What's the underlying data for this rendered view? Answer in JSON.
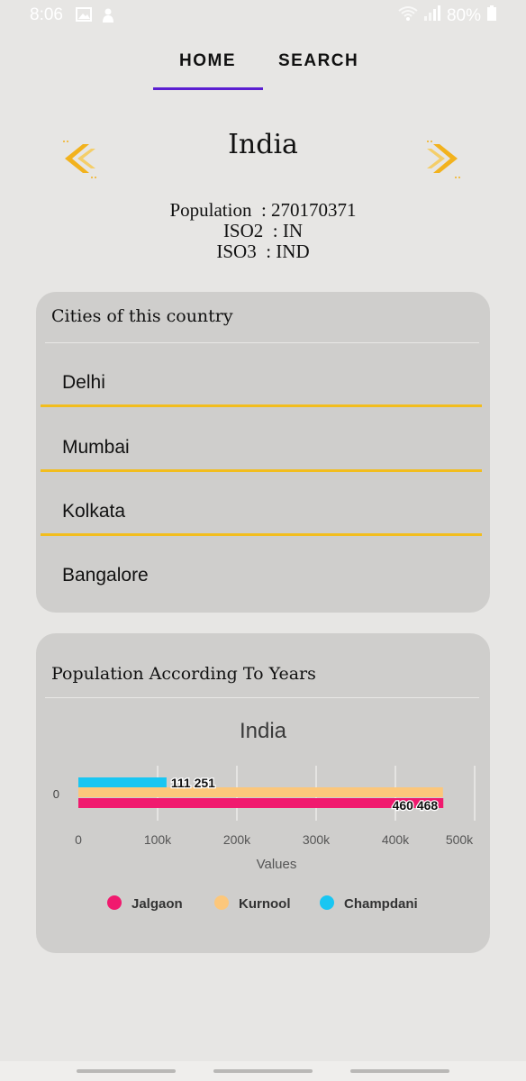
{
  "status_bar": {
    "time": "8:06",
    "battery": "80%",
    "left_icons": [
      "image-icon",
      "notification-icon"
    ],
    "right_icons": [
      "wifi-icon",
      "signal-icon",
      "battery-icon"
    ]
  },
  "tabs": [
    {
      "label": "HOME",
      "selected": true
    },
    {
      "label": "SEARCH",
      "selected": false
    }
  ],
  "colors": {
    "tab_indicator": "#5b1fd1",
    "arrow": "#f2b21d",
    "list_divider": "#f2bd1d",
    "card_bg": "#cfcecc",
    "page_bg": "#e7e6e4"
  },
  "country": {
    "name": "India",
    "population_label": "Population",
    "population": "270170371",
    "iso2_label": "ISO2",
    "iso2": "IN",
    "iso3_label": "ISO3",
    "iso3": "IND",
    "prev_icon": "chevron-left-icon",
    "next_icon": "chevron-right-icon"
  },
  "cities_card": {
    "title": "Cities of this country",
    "cities": [
      "Delhi",
      "Mumbai",
      "Kolkata",
      "Bangalore"
    ]
  },
  "population_card": {
    "title": "Population According To Years"
  },
  "chart_data": {
    "type": "bar",
    "orientation": "horizontal",
    "title": "India",
    "xlabel": "Values",
    "ylabel": "",
    "categories": [
      "0"
    ],
    "x_ticks": [
      "0",
      "100k",
      "200k",
      "300k",
      "400k",
      "500k"
    ],
    "xlim": [
      0,
      500000
    ],
    "grid": true,
    "legend_position": "bottom",
    "series": [
      {
        "name": "Jalgaon",
        "color": "#f01a6e",
        "values": [
          460468
        ],
        "label": "460 468"
      },
      {
        "name": "Kurnool",
        "color": "#fcc77b",
        "values": [
          460000
        ],
        "label": ""
      },
      {
        "name": "Champdani",
        "color": "#19c6f2",
        "values": [
          111251
        ],
        "label": "111 251"
      }
    ]
  }
}
